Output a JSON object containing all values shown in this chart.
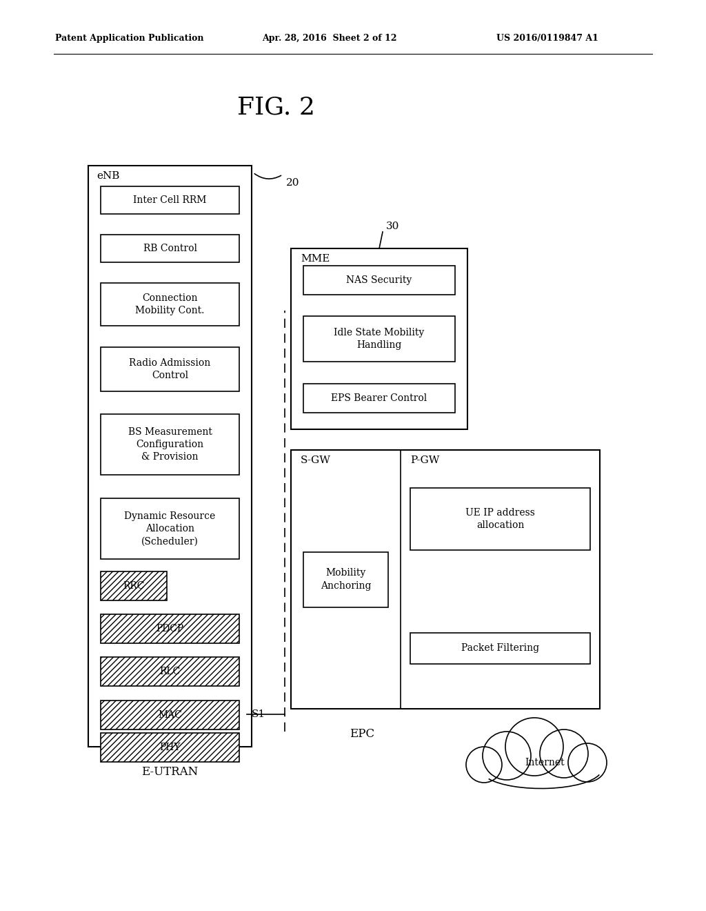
{
  "bg_color": "#ffffff",
  "header_left": "Patent Application Publication",
  "header_mid": "Apr. 28, 2016  Sheet 2 of 12",
  "header_right": "US 2016/0119847 A1",
  "fig_label": "FIG. 2",
  "enb_label": "eNB",
  "enb_number": "20",
  "epc_label": "EPC",
  "eutran_label": "E-UTRAN",
  "internet_label": "Internet",
  "s1_label": "S1",
  "mme_number": "30",
  "plain_boxes": [
    "Inter Cell RRM",
    "RB Control",
    "Connection\nMobility Cont.",
    "Radio Admission\nControl",
    "BS Measurement\nConfiguration\n& Provision",
    "Dynamic Resource\nAllocation\n(Scheduler)"
  ],
  "hatched_boxes": [
    "RRC",
    "PDCP",
    "RLC",
    "MAC",
    "PHY"
  ],
  "mme_label": "MME",
  "mme_boxes": [
    "NAS Security",
    "Idle State Mobility\nHandling",
    "EPS Bearer Control"
  ],
  "sgw_label": "S-GW",
  "pgw_label": "P-GW",
  "sgw_box": "Mobility\nAnchoring",
  "pgw_boxes": [
    "UE IP address\nallocation",
    "Packet Filtering"
  ]
}
